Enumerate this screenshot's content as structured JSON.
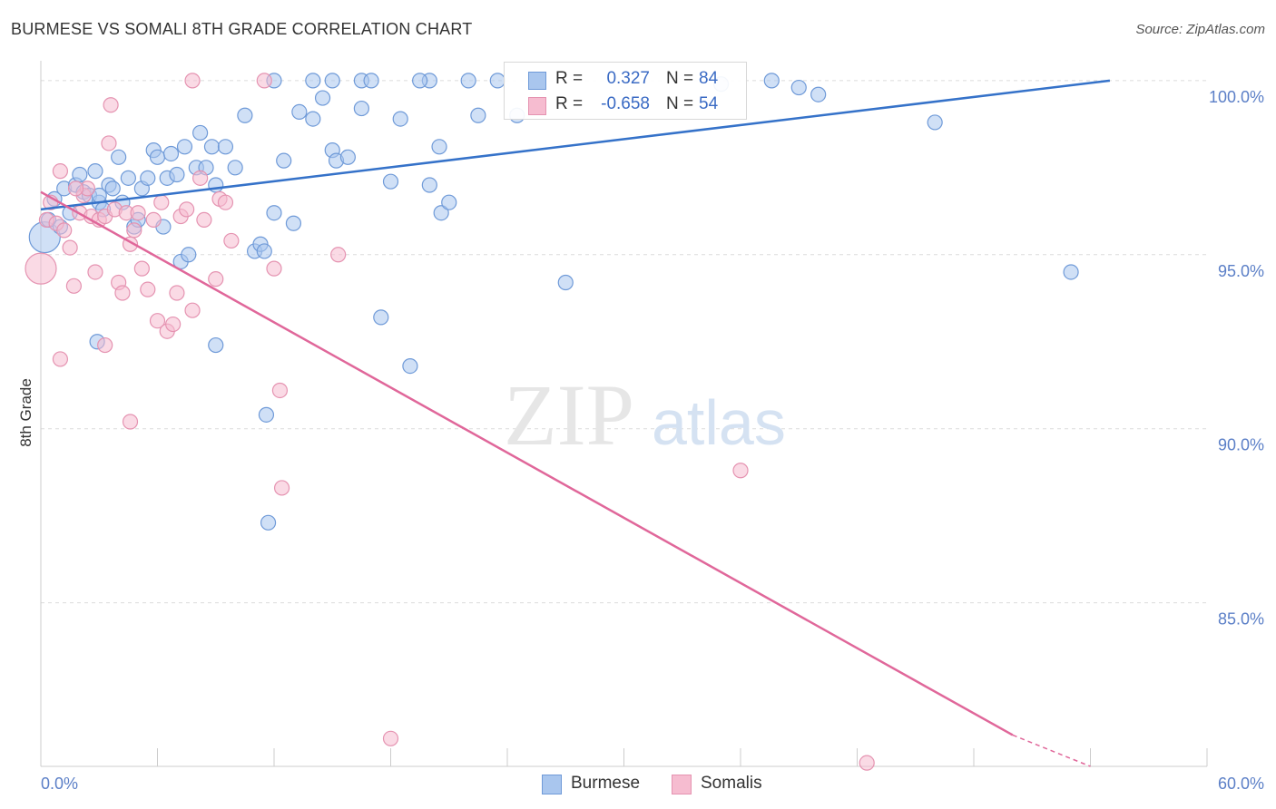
{
  "title": "BURMESE VS SOMALI 8TH GRADE CORRELATION CHART",
  "source": "Source: ZipAtlas.com",
  "watermark": {
    "zip": "ZIP",
    "atlas": "atlas"
  },
  "legend": {
    "burmese": {
      "r_label": "R =",
      "r_value": "0.327",
      "n_label": "N =",
      "n_value": "84"
    },
    "somalis": {
      "r_label": "R =",
      "r_value": "-0.658",
      "n_label": "N =",
      "n_value": "54"
    }
  },
  "bottom_legend": {
    "burmese": "Burmese",
    "somalis": "Somalis"
  },
  "colors": {
    "burmese_fill": "#a9c6ee",
    "burmese_stroke": "#6f9ad8",
    "burmese_line": "#3572c9",
    "somalis_fill": "#f6bcd0",
    "somalis_stroke": "#e593b1",
    "somalis_line": "#e0679a",
    "tick_label": "#5b7fc7",
    "grid": "#dcdcdc"
  },
  "chart_data": {
    "type": "scatter",
    "title": "BURMESE VS SOMALI 8TH GRADE CORRELATION CHART",
    "xlabel": "",
    "ylabel": "8th Grade",
    "xlim": [
      0,
      60
    ],
    "ylim": [
      80.3,
      100.7
    ],
    "x_ticks": [
      "0.0%",
      "60.0%"
    ],
    "y_ticks": [
      {
        "value": 100,
        "label": "100.0%"
      },
      {
        "value": 95,
        "label": "95.0%"
      },
      {
        "value": 90,
        "label": "90.0%"
      },
      {
        "value": 85,
        "label": "85.0%"
      }
    ],
    "grid": true,
    "legend_position": "top-center",
    "series": [
      {
        "name": "Burmese",
        "color": "#6f9ad8",
        "trend": {
          "x": [
            0,
            55
          ],
          "y": [
            96.3,
            100.0
          ]
        },
        "points": [
          [
            0.2,
            95.5
          ],
          [
            0.4,
            96.0
          ],
          [
            0.7,
            96.6
          ],
          [
            1.0,
            95.8
          ],
          [
            1.2,
            96.9
          ],
          [
            1.5,
            96.2
          ],
          [
            1.8,
            97.0
          ],
          [
            2.0,
            97.3
          ],
          [
            2.2,
            96.8
          ],
          [
            2.5,
            96.7
          ],
          [
            2.8,
            97.4
          ],
          [
            3.0,
            96.5
          ],
          [
            3.2,
            96.3
          ],
          [
            3.5,
            97.0
          ],
          [
            3.7,
            96.9
          ],
          [
            4.0,
            97.8
          ],
          [
            4.2,
            96.5
          ],
          [
            4.5,
            97.2
          ],
          [
            4.8,
            95.8
          ],
          [
            5.0,
            96.0
          ],
          [
            5.2,
            96.9
          ],
          [
            5.5,
            97.2
          ],
          [
            5.8,
            98.0
          ],
          [
            6.0,
            97.8
          ],
          [
            6.3,
            95.8
          ],
          [
            6.5,
            97.2
          ],
          [
            6.7,
            97.9
          ],
          [
            7.0,
            97.3
          ],
          [
            7.2,
            94.8
          ],
          [
            7.4,
            98.1
          ],
          [
            7.6,
            95.0
          ],
          [
            8.0,
            97.5
          ],
          [
            8.2,
            98.5
          ],
          [
            8.5,
            97.5
          ],
          [
            8.8,
            98.1
          ],
          [
            9.0,
            97.0
          ],
          [
            9.5,
            98.1
          ],
          [
            10.0,
            97.5
          ],
          [
            10.5,
            99.0
          ],
          [
            11.0,
            95.1
          ],
          [
            11.3,
            95.3
          ],
          [
            11.5,
            95.1
          ],
          [
            12.0,
            96.2
          ],
          [
            12.5,
            97.7
          ],
          [
            13.0,
            95.9
          ],
          [
            13.3,
            99.1
          ],
          [
            14.0,
            98.9
          ],
          [
            14.5,
            99.5
          ],
          [
            15.0,
            98.0
          ],
          [
            15.2,
            97.7
          ],
          [
            15.8,
            97.8
          ],
          [
            16.5,
            99.2
          ],
          [
            18.0,
            97.1
          ],
          [
            18.5,
            98.9
          ],
          [
            20.0,
            97.0
          ],
          [
            20.5,
            98.1
          ],
          [
            20.6,
            96.2
          ],
          [
            21.0,
            96.5
          ],
          [
            14.0,
            100.0
          ],
          [
            15.0,
            100.0
          ],
          [
            12.0,
            100.0
          ],
          [
            16.5,
            100.0
          ],
          [
            17.0,
            100.0
          ],
          [
            20.0,
            100.0
          ],
          [
            19.5,
            100.0
          ],
          [
            22.0,
            100.0
          ],
          [
            23.5,
            100.0
          ],
          [
            24.5,
            99.0
          ],
          [
            25.5,
            100.0
          ],
          [
            37.6,
            100.0
          ],
          [
            39.0,
            99.8
          ],
          [
            40.0,
            99.6
          ],
          [
            46.0,
            98.8
          ],
          [
            53.0,
            94.5
          ],
          [
            9.0,
            92.4
          ],
          [
            17.5,
            93.2
          ],
          [
            19.0,
            91.8
          ],
          [
            11.6,
            90.4
          ],
          [
            11.7,
            87.3
          ],
          [
            27.0,
            94.2
          ],
          [
            2.9,
            92.5
          ],
          [
            3.0,
            96.7
          ],
          [
            22.5,
            99.0
          ],
          [
            35.0,
            99.9
          ]
        ]
      },
      {
        "name": "Somalis",
        "color": "#e593b1",
        "trend": {
          "x": [
            0,
            50
          ],
          "y": [
            96.8,
            81.2
          ]
        },
        "trend_dashed": {
          "x": [
            50,
            54
          ],
          "y": [
            81.2,
            80.3
          ]
        },
        "points": [
          [
            0.0,
            94.6
          ],
          [
            0.3,
            96.0
          ],
          [
            0.5,
            96.5
          ],
          [
            0.8,
            95.9
          ],
          [
            1.0,
            97.4
          ],
          [
            1.2,
            95.7
          ],
          [
            1.5,
            95.2
          ],
          [
            1.7,
            94.1
          ],
          [
            2.0,
            96.2
          ],
          [
            2.2,
            96.7
          ],
          [
            2.4,
            96.9
          ],
          [
            2.6,
            96.1
          ],
          [
            2.8,
            94.5
          ],
          [
            3.0,
            96.0
          ],
          [
            3.3,
            96.1
          ],
          [
            3.5,
            98.2
          ],
          [
            3.6,
            99.3
          ],
          [
            3.8,
            96.3
          ],
          [
            4.0,
            94.2
          ],
          [
            4.2,
            93.9
          ],
          [
            4.4,
            96.2
          ],
          [
            4.6,
            95.3
          ],
          [
            4.8,
            95.7
          ],
          [
            5.0,
            96.2
          ],
          [
            5.2,
            94.6
          ],
          [
            5.5,
            94.0
          ],
          [
            5.8,
            96.0
          ],
          [
            6.0,
            93.1
          ],
          [
            6.2,
            96.5
          ],
          [
            6.5,
            92.8
          ],
          [
            6.8,
            93.0
          ],
          [
            7.0,
            93.9
          ],
          [
            7.2,
            96.1
          ],
          [
            7.5,
            96.3
          ],
          [
            7.8,
            93.4
          ],
          [
            8.2,
            97.2
          ],
          [
            8.4,
            96.0
          ],
          [
            9.0,
            94.3
          ],
          [
            9.2,
            96.6
          ],
          [
            9.5,
            96.5
          ],
          [
            9.8,
            95.4
          ],
          [
            12.0,
            94.6
          ],
          [
            12.3,
            91.1
          ],
          [
            15.3,
            95.0
          ],
          [
            7.8,
            100.0
          ],
          [
            11.5,
            100.0
          ],
          [
            1.0,
            92.0
          ],
          [
            3.3,
            92.4
          ],
          [
            4.6,
            90.2
          ],
          [
            12.4,
            88.3
          ],
          [
            36.0,
            88.8
          ],
          [
            18.0,
            81.1
          ],
          [
            42.5,
            80.4
          ],
          [
            1.8,
            96.9
          ]
        ]
      }
    ]
  }
}
